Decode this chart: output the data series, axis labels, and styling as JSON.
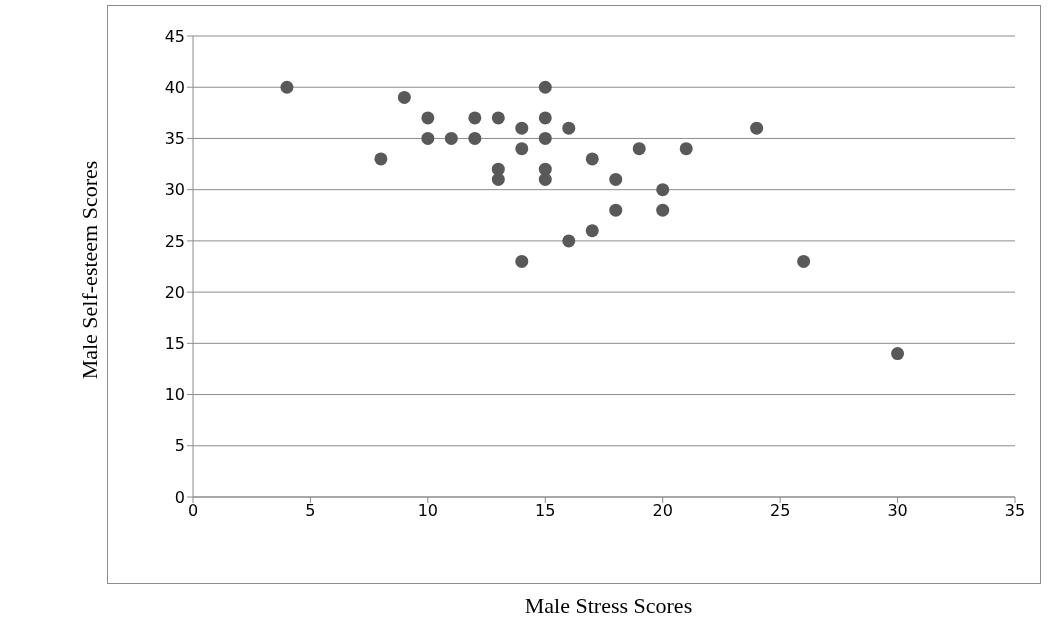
{
  "chart_data": {
    "type": "scatter",
    "xlabel": "Male Stress Scores",
    "ylabel": "Male Self-esteem Scores",
    "x": [
      4,
      8,
      9,
      10,
      10,
      11,
      12,
      12,
      13,
      13,
      13,
      14,
      14,
      14,
      15,
      15,
      15,
      15,
      15,
      16,
      16,
      17,
      17,
      18,
      18,
      19,
      20,
      20,
      21,
      24,
      26,
      30
    ],
    "series": [
      {
        "color": "#595959",
        "values": [
          40,
          33,
          39,
          37,
          35,
          35,
          37,
          35,
          37,
          32,
          31,
          36,
          34,
          23,
          40,
          37,
          35,
          32,
          31,
          36,
          25,
          33,
          26,
          31,
          28,
          34,
          30,
          28,
          34,
          36,
          23,
          14
        ]
      }
    ],
    "xlim": [
      0,
      35
    ],
    "xticks": [
      0,
      5,
      10,
      15,
      20,
      25,
      30,
      35
    ],
    "ylim": [
      0,
      45
    ],
    "yticks": [
      0,
      5,
      10,
      15,
      20,
      25,
      30,
      35,
      40,
      45
    ],
    "grid": "y",
    "legend": false,
    "marker": "circle"
  }
}
